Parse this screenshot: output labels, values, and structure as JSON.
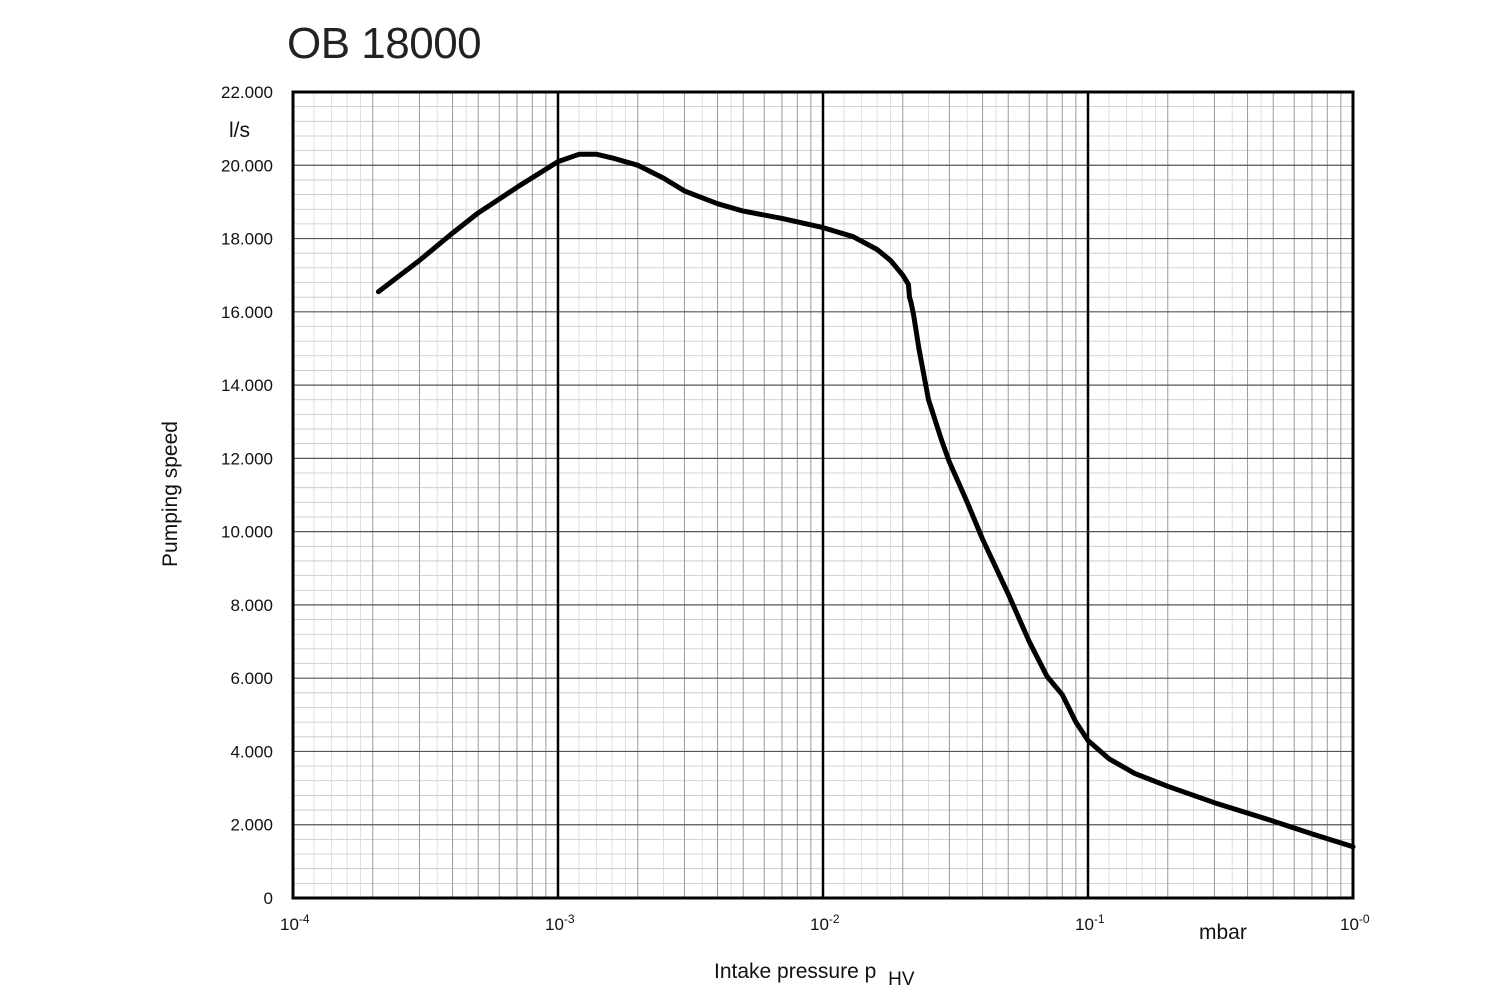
{
  "chart_data": {
    "type": "line",
    "title": "OB 18000",
    "xlabel": "Intake pressure p",
    "xlabel_subscript": "HV",
    "x_unit": "mbar",
    "ylabel": "Pumping speed",
    "y_unit": "l/s",
    "x_scale": "log",
    "xlim": [
      0.0001,
      1
    ],
    "ylim": [
      0,
      22000
    ],
    "grid": true,
    "x_ticks": [
      {
        "base": "10",
        "exp": "-4"
      },
      {
        "base": "10",
        "exp": "-3"
      },
      {
        "base": "10",
        "exp": "-2"
      },
      {
        "base": "10",
        "exp": "-1"
      },
      {
        "base": "10",
        "exp": "-0"
      }
    ],
    "y_tick_labels": [
      "0",
      "2.000",
      "4.000",
      "6.000",
      "8.000",
      "10.000",
      "12.000",
      "14.000",
      "16.000",
      "18.000",
      "20.000",
      "22.000"
    ],
    "series": [
      {
        "x": [
          0.00021,
          0.0003,
          0.0004,
          0.0005,
          0.0007,
          0.001,
          0.0012,
          0.0014,
          0.0016,
          0.002,
          0.0025,
          0.003,
          0.004,
          0.005,
          0.007,
          0.01,
          0.013,
          0.016,
          0.018,
          0.02,
          0.021,
          0.0212,
          0.0215,
          0.022,
          0.023,
          0.025,
          0.028,
          0.03,
          0.035,
          0.04,
          0.05,
          0.06,
          0.07,
          0.08,
          0.09,
          0.1,
          0.12,
          0.15,
          0.2,
          0.3,
          0.5,
          0.7,
          1.0
        ],
        "y": [
          16550,
          17400,
          18150,
          18700,
          19400,
          20100,
          20300,
          20300,
          20200,
          20000,
          19650,
          19300,
          18950,
          18750,
          18550,
          18300,
          18050,
          17700,
          17400,
          17000,
          16750,
          16400,
          16250,
          15900,
          15000,
          13600,
          12500,
          11900,
          10800,
          9800,
          8300,
          7000,
          6050,
          5550,
          4800,
          4300,
          3800,
          3400,
          3050,
          2600,
          2100,
          1750,
          1400
        ]
      }
    ]
  }
}
